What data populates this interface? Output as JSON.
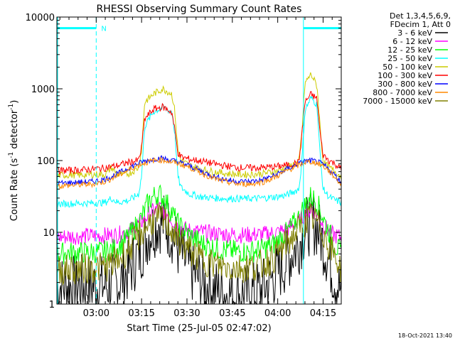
{
  "chart_data": {
    "type": "line",
    "title": "RHESSI Observing Summary Count Rates",
    "xlabel": "Start Time (25-Jul-05 02:47:02)",
    "ylabel": "Count Rate (s⁻¹ detector⁻¹)",
    "ylabel_parts": [
      "Count Rate (s",
      "-1",
      " detector",
      "-1",
      ")"
    ],
    "yscale": "log",
    "ylim": [
      1,
      10000
    ],
    "xlim_minutes": [
      0,
      94
    ],
    "y_ticks": [
      {
        "value": 1,
        "label": "1"
      },
      {
        "value": 10,
        "label": "10"
      },
      {
        "value": 100,
        "label": "100"
      },
      {
        "value": 1000,
        "label": "1000"
      },
      {
        "value": 10000,
        "label": "10000"
      }
    ],
    "x_ticks": [
      {
        "minute": 13,
        "label": "03:00"
      },
      {
        "minute": 28,
        "label": "03:15"
      },
      {
        "minute": 43,
        "label": "03:30"
      },
      {
        "minute": 58,
        "label": "03:45"
      },
      {
        "minute": 73,
        "label": "04:00"
      },
      {
        "minute": 88,
        "label": "04:15"
      }
    ],
    "legend_header": [
      "Det 1,3,4,5,6,9,",
      "FDecim 1, Att 0"
    ],
    "legend_position": "right",
    "series": [
      {
        "name": "3 - 6 keV",
        "color": "#000000",
        "x": [
          0,
          4,
          8,
          12,
          16,
          20,
          24,
          28,
          30,
          32,
          34,
          36,
          38,
          40,
          44,
          48,
          52,
          56,
          60,
          64,
          68,
          72,
          76,
          80,
          82,
          84,
          86,
          88,
          90,
          92,
          94
        ],
        "y": [
          1.8,
          1.8,
          1.8,
          1.8,
          1.8,
          1.9,
          3,
          6,
          9,
          12,
          14,
          13,
          10,
          6,
          3,
          2,
          1.6,
          1.4,
          1.3,
          1.4,
          1.6,
          2.5,
          4,
          7,
          11,
          14,
          12,
          7,
          4,
          2.2,
          1.5
        ]
      },
      {
        "name": "6 - 12 keV",
        "color": "#ff00ff",
        "x": [
          0,
          4,
          8,
          12,
          16,
          20,
          24,
          28,
          30,
          32,
          34,
          36,
          38,
          40,
          44,
          48,
          52,
          56,
          60,
          64,
          68,
          72,
          76,
          80,
          82,
          84,
          86,
          88,
          90,
          92,
          94
        ],
        "y": [
          8.5,
          8.8,
          8.8,
          9,
          9,
          9.2,
          10.5,
          14,
          17,
          20,
          22,
          19,
          15,
          12,
          10.5,
          10,
          9.6,
          9.4,
          9.2,
          9.2,
          9.4,
          9.8,
          11,
          14,
          18,
          21,
          18,
          13,
          10,
          9,
          8.5
        ]
      },
      {
        "name": "12 - 25 keV",
        "color": "#00ff00",
        "x": [
          0,
          4,
          8,
          12,
          16,
          20,
          24,
          28,
          30,
          32,
          34,
          36,
          38,
          40,
          44,
          48,
          52,
          56,
          60,
          64,
          68,
          72,
          76,
          80,
          82,
          84,
          86,
          88,
          90,
          92,
          94
        ],
        "y": [
          5,
          5.2,
          5.2,
          5.3,
          5.4,
          6,
          9,
          16,
          25,
          32,
          34,
          27,
          19,
          13,
          9,
          7,
          6,
          5.6,
          5.4,
          5.4,
          5.8,
          7,
          10,
          16,
          24,
          32,
          26,
          16,
          10,
          6.5,
          5
        ]
      },
      {
        "name": "25 - 50 keV",
        "color": "#00ffff",
        "x": [
          0,
          4,
          8,
          12,
          16,
          18,
          20,
          24,
          27,
          28,
          29,
          32,
          35,
          38,
          39,
          40,
          41,
          44,
          48,
          52,
          56,
          60,
          64,
          68,
          72,
          76,
          80,
          81,
          82,
          84,
          86,
          87,
          88,
          90,
          92,
          94
        ],
        "y": [
          25,
          25,
          25.5,
          25.5,
          26,
          30,
          26,
          28,
          34,
          60,
          300,
          480,
          550,
          480,
          240,
          60,
          42,
          34,
          31,
          30,
          29.5,
          29.5,
          29.5,
          30,
          31,
          33,
          40,
          100,
          500,
          750,
          600,
          120,
          40,
          31,
          28,
          26
        ]
      },
      {
        "name": "50 - 100 keV",
        "color": "#cccc00",
        "x": [
          0,
          4,
          8,
          12,
          16,
          18,
          20,
          24,
          27,
          28,
          29,
          32,
          35,
          38,
          39,
          40,
          41,
          44,
          48,
          52,
          56,
          60,
          64,
          68,
          72,
          76,
          80,
          81,
          82,
          84,
          86,
          87,
          88,
          90,
          92,
          94
        ],
        "y": [
          62,
          63,
          63,
          64,
          64,
          80,
          64,
          66,
          80,
          140,
          650,
          850,
          1000,
          850,
          480,
          140,
          100,
          85,
          75,
          70,
          66,
          64,
          64,
          66,
          70,
          80,
          95,
          250,
          1200,
          1600,
          1100,
          300,
          95,
          80,
          70,
          60
        ]
      },
      {
        "name": "100 - 300 keV",
        "color": "#ff0000",
        "x": [
          0,
          4,
          8,
          12,
          16,
          20,
          24,
          27,
          28,
          29,
          32,
          35,
          38,
          39,
          40,
          41,
          44,
          48,
          52,
          56,
          60,
          64,
          68,
          72,
          76,
          80,
          81,
          82,
          84,
          86,
          87,
          88,
          90,
          92,
          94
        ],
        "y": [
          72,
          73,
          74,
          76,
          79,
          85,
          95,
          100,
          150,
          380,
          520,
          560,
          470,
          260,
          130,
          112,
          104,
          98,
          90,
          84,
          80,
          79,
          80,
          82,
          86,
          94,
          230,
          650,
          840,
          720,
          240,
          120,
          100,
          90,
          75
        ]
      },
      {
        "name": "300 - 800 keV",
        "color": "#0000ff",
        "x": [
          0,
          4,
          8,
          12,
          16,
          20,
          24,
          28,
          32,
          34,
          36,
          40,
          44,
          48,
          52,
          56,
          60,
          64,
          68,
          72,
          76,
          80,
          82,
          84,
          86,
          88,
          90,
          92,
          94
        ],
        "y": [
          48,
          49,
          50,
          51,
          55,
          65,
          80,
          95,
          105,
          108,
          105,
          96,
          84,
          70,
          60,
          54,
          51,
          51,
          54,
          62,
          76,
          90,
          98,
          100,
          96,
          88,
          75,
          62,
          50
        ]
      },
      {
        "name": "800 - 7000 keV",
        "color": "#ff8800",
        "x": [
          0,
          4,
          8,
          12,
          16,
          20,
          24,
          28,
          32,
          34,
          36,
          40,
          44,
          48,
          52,
          56,
          60,
          64,
          68,
          72,
          76,
          80,
          82,
          84,
          86,
          88,
          90,
          92,
          94
        ],
        "y": [
          44,
          45,
          46,
          47,
          51,
          61,
          75,
          90,
          100,
          102,
          100,
          91,
          80,
          66,
          56,
          50,
          47,
          47,
          50,
          58,
          72,
          86,
          94,
          96,
          92,
          84,
          71,
          58,
          46
        ]
      },
      {
        "name": "7000 - 15000 keV",
        "color": "#808000",
        "x": [
          0,
          4,
          8,
          12,
          16,
          20,
          24,
          28,
          30,
          32,
          34,
          36,
          38,
          40,
          44,
          48,
          52,
          56,
          60,
          64,
          68,
          72,
          76,
          80,
          82,
          84,
          86,
          88,
          90,
          92,
          94
        ],
        "y": [
          3,
          3,
          3.1,
          3.2,
          3.3,
          4,
          6,
          10,
          13,
          15,
          15.5,
          14,
          11,
          8,
          5.5,
          4.2,
          3.6,
          3.3,
          3.2,
          3.3,
          3.6,
          4.5,
          7,
          11,
          14,
          16,
          14,
          10,
          6.5,
          4.5,
          3
        ]
      }
    ],
    "markers": [
      {
        "type": "bar",
        "x_start": 0,
        "x_end": 13,
        "y": 7000,
        "label": "N",
        "color": "#00ffff"
      },
      {
        "type": "bar",
        "x_start": 81.5,
        "x_end": 94,
        "y": 7000,
        "color": "#00ffff"
      },
      {
        "type": "dashed_vline",
        "x": 13,
        "color": "#00ffff"
      },
      {
        "type": "solid_vline",
        "x": 81.5,
        "color": "#00ffff"
      },
      {
        "type": "dashed_vline",
        "x": 94,
        "color": "#00ffff"
      }
    ]
  },
  "footer": {
    "timestamp": "18-Oct-2021 13:40"
  }
}
